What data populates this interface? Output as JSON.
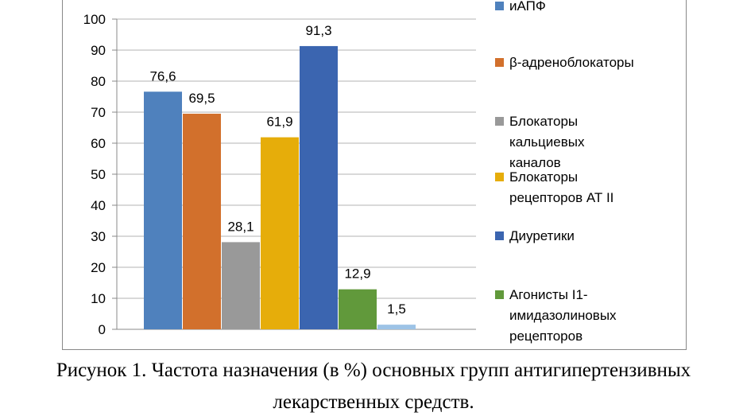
{
  "chart_data": {
    "type": "bar",
    "ylim": [
      0,
      100
    ],
    "yticks": [
      "0",
      "10",
      "20",
      "30",
      "40",
      "50",
      "60",
      "70",
      "80",
      "90",
      "100"
    ],
    "grid": true,
    "legend_position": "right",
    "series": [
      {
        "name": "иАПФ",
        "value": 76.6,
        "label": "76,6",
        "color": "#4f81bd",
        "legend_lines": [
          "иАПФ"
        ]
      },
      {
        "name": "β-адреноблокаторы",
        "value": 69.5,
        "label": "69,5",
        "color": "#d2702c",
        "legend_lines": [
          "β-адреноблокаторы"
        ]
      },
      {
        "name": "Блокаторы кальциевых каналов",
        "value": 28.1,
        "label": "28,1",
        "color": "#999999",
        "legend_lines": [
          "Блокаторы",
          "кальциевых",
          "каналов"
        ]
      },
      {
        "name": "Блокаторы рецепторов АТ II",
        "value": 61.9,
        "label": "61,9",
        "color": "#e6ad0a",
        "legend_lines": [
          "Блокаторы",
          "рецепторов АТ II"
        ]
      },
      {
        "name": "Диуретики",
        "value": 91.3,
        "label": "91,3",
        "color": "#3b65b0",
        "legend_lines": [
          "Диуретики"
        ]
      },
      {
        "name": "Агонисты I1-имидазолиновых рецепторов",
        "value": 12.9,
        "label": "12,9",
        "color": "#61993b",
        "legend_lines": [
          "Агонисты I1-",
          "имидазолиновых",
          "рецепторов"
        ]
      },
      {
        "name": "",
        "value": 1.5,
        "label": "1,5",
        "color": "#9dc3e6",
        "legend_lines": []
      }
    ]
  },
  "caption": {
    "line1": "Рисунок 1.  Частота назначения (в %) основных групп антигипертензивных",
    "line2": "лекарственных средств."
  }
}
